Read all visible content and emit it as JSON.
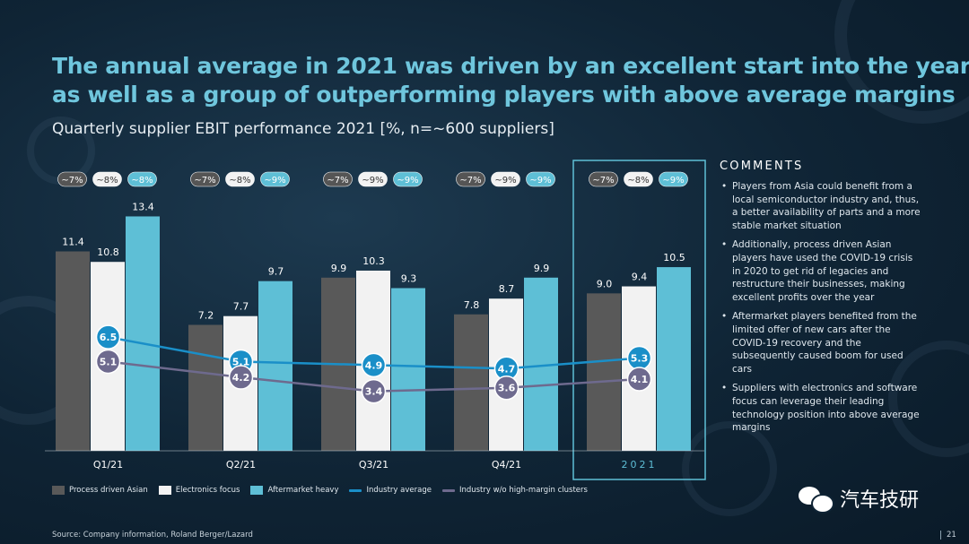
{
  "title_lines": [
    "The annual average in 2021 was driven by an excellent start into the year",
    "as well as a group of outperforming players with above average margins"
  ],
  "subtitle": "Quarterly supplier EBIT performance 2021 [%, n=~600 suppliers]",
  "colors": {
    "title": "#6fc6dd",
    "process_driven_asian": "#595959",
    "electronics_focus": "#f2f2f2",
    "aftermarket_heavy": "#5ebfd6",
    "industry_average": "#1a8fc8",
    "industry_wo_high_margin": "#6e6a8e",
    "highlight_frame": "#5ebfd6"
  },
  "chart_data": {
    "type": "bar",
    "categories": [
      "Q1/21",
      "Q2/21",
      "Q3/21",
      "Q4/21",
      "2021"
    ],
    "highlighted_category": "2021",
    "series": [
      {
        "name": "Process driven Asian",
        "type": "bar",
        "values": [
          11.4,
          7.2,
          9.9,
          7.8,
          9.0
        ]
      },
      {
        "name": "Electronics focus",
        "type": "bar",
        "values": [
          10.8,
          7.7,
          10.3,
          8.7,
          9.4
        ]
      },
      {
        "name": "Aftermarket heavy",
        "type": "bar",
        "values": [
          13.4,
          9.7,
          9.3,
          9.9,
          10.5
        ]
      },
      {
        "name": "Industry average",
        "type": "line",
        "values": [
          6.5,
          5.1,
          4.9,
          4.7,
          5.3
        ]
      },
      {
        "name": "Industry w/o high-margin clusters",
        "type": "line",
        "values": [
          5.1,
          4.2,
          3.4,
          3.6,
          4.1
        ]
      }
    ],
    "share_badges": [
      [
        "~7%",
        "~8%",
        "~8%"
      ],
      [
        "~7%",
        "~8%",
        "~9%"
      ],
      [
        "~7%",
        "~9%",
        "~9%"
      ],
      [
        "~7%",
        "~9%",
        "~9%"
      ],
      [
        "~7%",
        "~8%",
        "~9%"
      ]
    ],
    "ylim": [
      0,
      14.5
    ],
    "grid": false,
    "legend_position": "bottom"
  },
  "comments": {
    "heading": "COMMENTS",
    "items": [
      "Players from Asia could benefit from a local semiconductor industry and, thus, a better availability of parts and a more stable market situation",
      "Additionally, process driven Asian players have used the COVID-19 crisis in 2020 to get rid of legacies and restructure their businesses, making excellent profits over the year",
      "Aftermarket players benefited from the limited offer of new cars after the COVID-19 recovery and the subsequently caused boom for used cars",
      "Suppliers with electronics and software focus can leverage their leading technology position into above average margins"
    ]
  },
  "legend": [
    {
      "label": "Process driven Asian",
      "kind": "swatch",
      "color": "#595959"
    },
    {
      "label": "Electronics focus",
      "kind": "swatch",
      "color": "#f2f2f2"
    },
    {
      "label": "Aftermarket heavy",
      "kind": "swatch",
      "color": "#5ebfd6"
    },
    {
      "label": "Industry average",
      "kind": "line",
      "color": "#1a8fc8"
    },
    {
      "label": "Industry w/o high-margin clusters",
      "kind": "line",
      "color": "#6e6a8e"
    }
  ],
  "source": "Source: Company information, Roland Berger/Lazard",
  "watermark": "汽车技研",
  "page_number": "21"
}
